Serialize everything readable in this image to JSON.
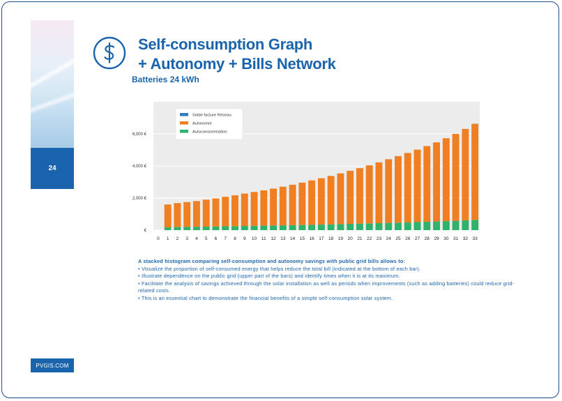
{
  "page": {
    "number": "24",
    "site": "PVGIS.COM",
    "title_line1": "Self-consumption Graph",
    "title_line2": "+ Autonomy + Bills Network",
    "subtitle": "Batteries 24 kWh"
  },
  "description": {
    "heading": "A stacked histogram comparing self-consumption and autonomy savings with public grid bills allows to:",
    "bullets": [
      "• Visualize the proportion of self-consumed energy that helps reduce the total bill (indicated at the bottom of each bar).",
      "• Illustrate dependence on the public grid (upper part of the bars) and identify times when it is at its maximum.",
      "• Facilitate the analysis of savings achieved through the solar installation as well as periods when improvements (such as adding batteries) could reduce grid-related costs.",
      "• This is an essential chart to demonstrate the financial benefits of a simple self-consumption solar system."
    ]
  },
  "colors": {
    "brand": "#1a64ad",
    "solde": "#2e7cbf",
    "autonomie": "#f07f22",
    "autoconsommation": "#2fb36a"
  },
  "chart_data": {
    "type": "bar",
    "stacked": true,
    "title": "",
    "xlabel": "",
    "ylabel": "",
    "ylim": [
      0,
      8000
    ],
    "yticks": [
      0,
      2000,
      4000,
      6000
    ],
    "ytick_labels": [
      "€",
      "2,000 €",
      "4,000 €",
      "6,000 €"
    ],
    "categories": [
      "0",
      "1",
      "2",
      "3",
      "4",
      "5",
      "6",
      "7",
      "8",
      "9",
      "10",
      "11",
      "12",
      "13",
      "14",
      "15",
      "16",
      "17",
      "18",
      "19",
      "20",
      "21",
      "22",
      "23",
      "24",
      "25",
      "26",
      "27",
      "28",
      "29",
      "30",
      "31",
      "32",
      "33"
    ],
    "legend": [
      "Solde facture Réseau",
      "Autonomie",
      "Autoconsommation"
    ],
    "legend_position": "top-left",
    "series": [
      {
        "name": "Solde facture Réseau",
        "values": [
          0,
          0,
          0,
          0,
          0,
          0,
          0,
          0,
          0,
          0,
          0,
          0,
          0,
          0,
          0,
          0,
          0,
          0,
          0,
          0,
          0,
          0,
          0,
          0,
          0,
          0,
          0,
          0,
          0,
          0,
          0,
          0,
          0,
          0
        ]
      },
      {
        "name": "Autoconsommation",
        "values": [
          0,
          170,
          190,
          200,
          210,
          220,
          230,
          240,
          250,
          260,
          270,
          280,
          290,
          300,
          310,
          320,
          330,
          345,
          360,
          375,
          390,
          405,
          420,
          435,
          450,
          465,
          480,
          500,
          520,
          540,
          560,
          580,
          610,
          640
        ]
      },
      {
        "name": "Autonomie",
        "values": [
          0,
          1430,
          1500,
          1550,
          1600,
          1680,
          1750,
          1840,
          1920,
          2020,
          2110,
          2200,
          2300,
          2410,
          2520,
          2640,
          2770,
          2890,
          3020,
          3160,
          3310,
          3460,
          3620,
          3790,
          3970,
          4150,
          4330,
          4520,
          4720,
          4930,
          5170,
          5420,
          5700,
          5990
        ]
      }
    ]
  }
}
